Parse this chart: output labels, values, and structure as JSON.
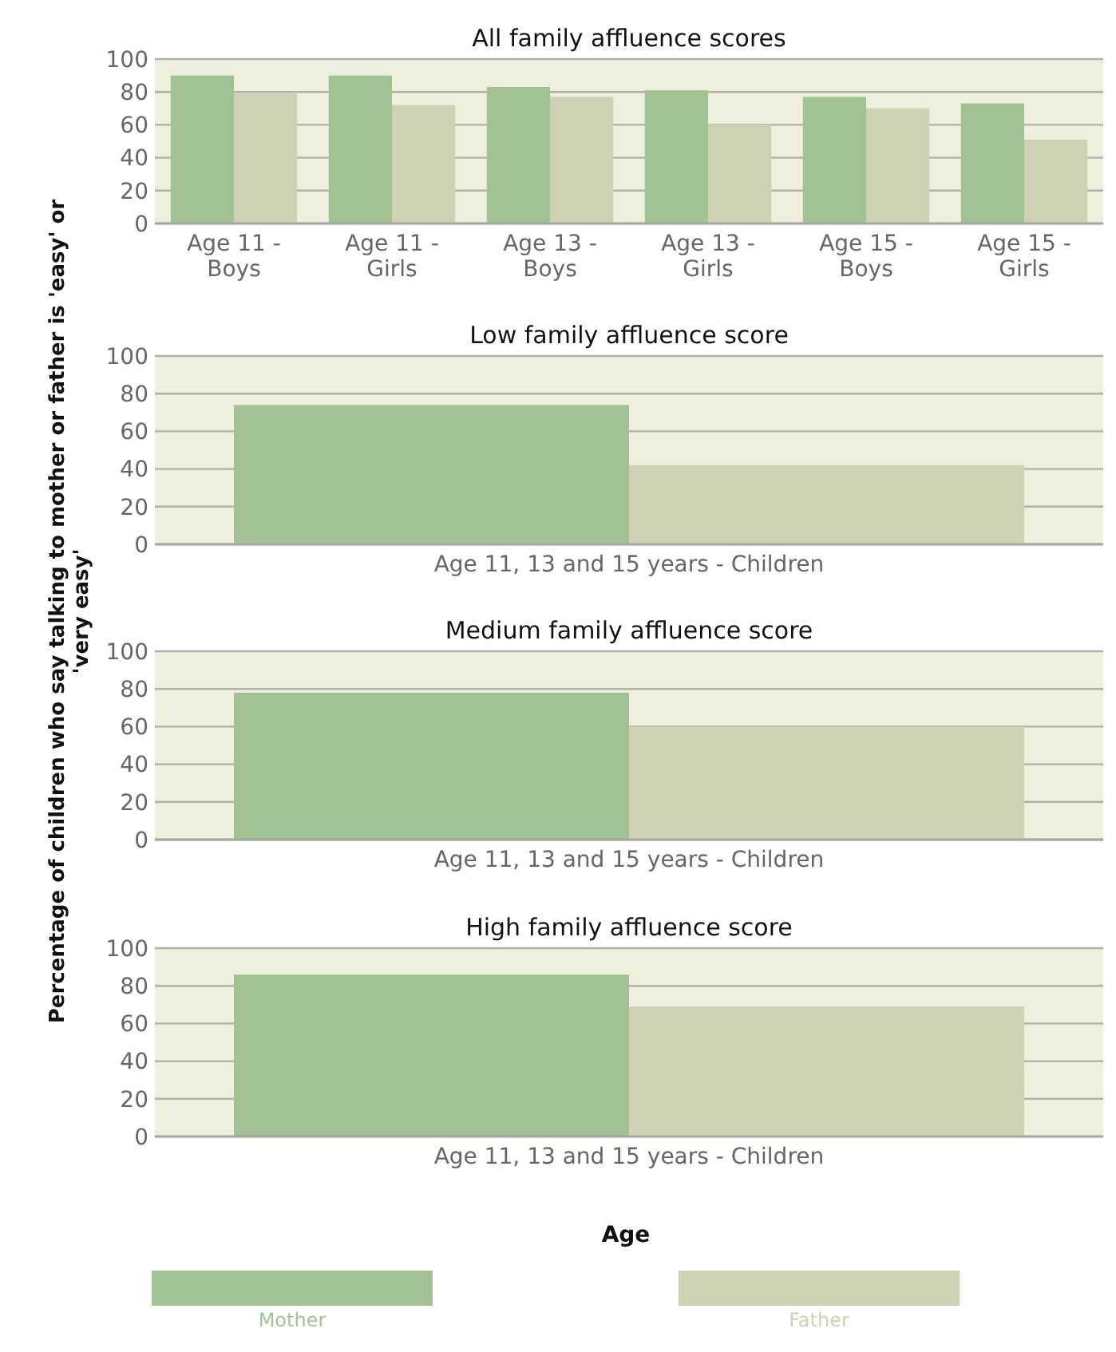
{
  "chart_data": [
    {
      "type": "bar",
      "title": "All family affluence scores",
      "ylabel": "Percentage of children who say talking to mother or father is 'easy' or 'very easy'",
      "categories": [
        "Age 11 - Boys",
        "Age 11 - Girls",
        "Age 13 - Boys",
        "Age 13 - Girls",
        "Age 15 - Boys",
        "Age 15 - Girls"
      ],
      "series": [
        {
          "color": "#a3c293",
          "values": [
            90,
            90,
            83,
            81,
            77,
            73
          ]
        },
        {
          "color": "#cfd1b5",
          "values": [
            79,
            72,
            77,
            60,
            70,
            51
          ]
        }
      ],
      "ylim": [
        0,
        100
      ],
      "yticks": [
        0,
        20,
        40,
        60,
        80,
        100
      ],
      "grid": "y"
    },
    {
      "type": "bar",
      "title": "Low family affluence score",
      "categories": [
        "Age 11, 13 and 15 years - Children"
      ],
      "series": [
        {
          "color": "#a3c293",
          "values": [
            74
          ]
        },
        {
          "color": "#cfd1b5",
          "values": [
            42
          ]
        }
      ],
      "ylim": [
        0,
        100
      ],
      "yticks": [
        0,
        20,
        40,
        60,
        80,
        100
      ],
      "grid": "y"
    },
    {
      "type": "bar",
      "title": "Medium family affluence score",
      "categories": [
        "Age 11, 13 and 15 years - Children"
      ],
      "series": [
        {
          "color": "#a3c293",
          "values": [
            78
          ]
        },
        {
          "color": "#cfd1b5",
          "values": [
            60
          ]
        }
      ],
      "ylim": [
        0,
        100
      ],
      "yticks": [
        0,
        20,
        40,
        60,
        80,
        100
      ],
      "grid": "y"
    },
    {
      "type": "bar",
      "title": "High family affluence score",
      "xlabel": "Age",
      "categories": [
        "Age 11, 13 and 15 years - Children"
      ],
      "series": [
        {
          "name": "Mother",
          "color": "#a3c293",
          "values": [
            86
          ]
        },
        {
          "name": "Father",
          "color": "#cfd1b5",
          "values": [
            69
          ]
        }
      ],
      "ylim": [
        0,
        100
      ],
      "yticks": [
        0,
        20,
        40,
        60,
        80,
        100
      ],
      "grid": "y",
      "legend": "bottom"
    }
  ]
}
